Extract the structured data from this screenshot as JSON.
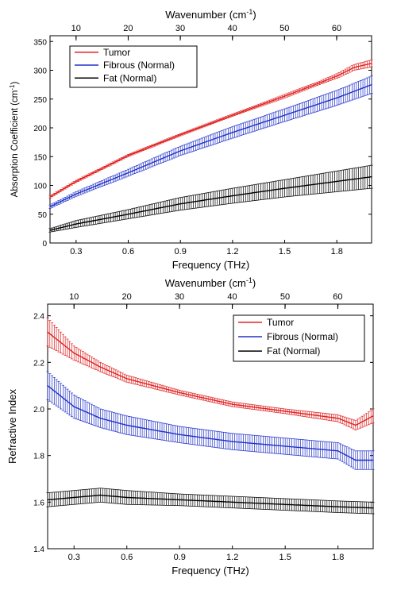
{
  "chart_data": [
    {
      "type": "line",
      "top_axis_label": "Wavenumber (cm",
      "top_axis_label_sup": "-1",
      "top_axis_label_end": ")",
      "top_ticks": [
        10,
        20,
        30,
        40,
        50,
        60
      ],
      "xlabel": "Frequency (THz)",
      "ylabel": "Absorption Coefficient (cm",
      "ylabel_sup": "-1",
      "ylabel_end": ")",
      "xlim": [
        0.15,
        2.0
      ],
      "ylim": [
        0,
        360
      ],
      "x_ticks": [
        "0.3",
        "0.6",
        "0.9",
        "1.2",
        "1.5",
        "1.8"
      ],
      "y_ticks": [
        "0",
        "50",
        "100",
        "150",
        "200",
        "250",
        "300",
        "350"
      ],
      "legend_position": "top-left",
      "error_bars": true,
      "series": [
        {
          "name": "Tumor",
          "color": "#e02020",
          "x": [
            0.15,
            0.3,
            0.6,
            0.9,
            1.2,
            1.5,
            1.7,
            1.8,
            1.9,
            2.0
          ],
          "y": [
            80,
            107,
            152,
            188,
            222,
            255,
            278,
            290,
            305,
            312
          ],
          "err": [
            2,
            2,
            2,
            2,
            2,
            3,
            3,
            4,
            5,
            6
          ]
        },
        {
          "name": "Fibrous (Normal)",
          "color": "#2030c8",
          "x": [
            0.15,
            0.3,
            0.6,
            0.9,
            1.2,
            1.5,
            1.8,
            2.0
          ],
          "y": [
            63,
            85,
            122,
            160,
            192,
            222,
            252,
            275
          ],
          "err": [
            3,
            4,
            6,
            8,
            10,
            11,
            13,
            15
          ]
        },
        {
          "name": "Fat (Normal)",
          "color": "#000000",
          "x": [
            0.15,
            0.3,
            0.6,
            0.9,
            1.2,
            1.5,
            1.8,
            2.0
          ],
          "y": [
            22,
            33,
            50,
            68,
            82,
            95,
            107,
            115
          ],
          "err": [
            3,
            6,
            8,
            11,
            13,
            15,
            18,
            20
          ]
        }
      ]
    },
    {
      "type": "line",
      "top_axis_label": "Wavenumber (cm",
      "top_axis_label_sup": "-1",
      "top_axis_label_end": ")",
      "top_ticks": [
        10,
        20,
        30,
        40,
        50,
        60
      ],
      "xlabel": "Frequency (THz)",
      "ylabel": "Refractive Index",
      "xlim": [
        0.15,
        2.0
      ],
      "ylim": [
        1.4,
        2.45
      ],
      "x_ticks": [
        "0.3",
        "0.6",
        "0.9",
        "1.2",
        "1.5",
        "1.8"
      ],
      "y_ticks": [
        "1.4",
        "1.6",
        "1.8",
        "2.0",
        "2.2",
        "2.4"
      ],
      "legend_position": "top-right",
      "error_bars": true,
      "series": [
        {
          "name": "Tumor",
          "color": "#e02020",
          "x": [
            0.15,
            0.3,
            0.45,
            0.6,
            0.9,
            1.2,
            1.5,
            1.8,
            1.9,
            2.0
          ],
          "y": [
            2.33,
            2.24,
            2.18,
            2.13,
            2.07,
            2.02,
            1.99,
            1.96,
            1.93,
            1.97
          ],
          "err": [
            0.06,
            0.03,
            0.02,
            0.015,
            0.01,
            0.01,
            0.01,
            0.015,
            0.02,
            0.03
          ]
        },
        {
          "name": "Fibrous (Normal)",
          "color": "#2030c8",
          "x": [
            0.15,
            0.3,
            0.45,
            0.6,
            0.9,
            1.2,
            1.5,
            1.8,
            1.9,
            2.0
          ],
          "y": [
            2.1,
            2.01,
            1.96,
            1.93,
            1.89,
            1.86,
            1.84,
            1.82,
            1.78,
            1.78
          ],
          "err": [
            0.06,
            0.05,
            0.04,
            0.04,
            0.035,
            0.035,
            0.035,
            0.035,
            0.04,
            0.04
          ]
        },
        {
          "name": "Fat (Normal)",
          "color": "#000000",
          "x": [
            0.15,
            0.3,
            0.45,
            0.6,
            0.9,
            1.2,
            1.5,
            1.8,
            2.0
          ],
          "y": [
            1.61,
            1.62,
            1.63,
            1.62,
            1.61,
            1.6,
            1.59,
            1.58,
            1.575
          ],
          "err": [
            0.03,
            0.03,
            0.03,
            0.03,
            0.025,
            0.025,
            0.025,
            0.025,
            0.025
          ]
        }
      ]
    }
  ]
}
